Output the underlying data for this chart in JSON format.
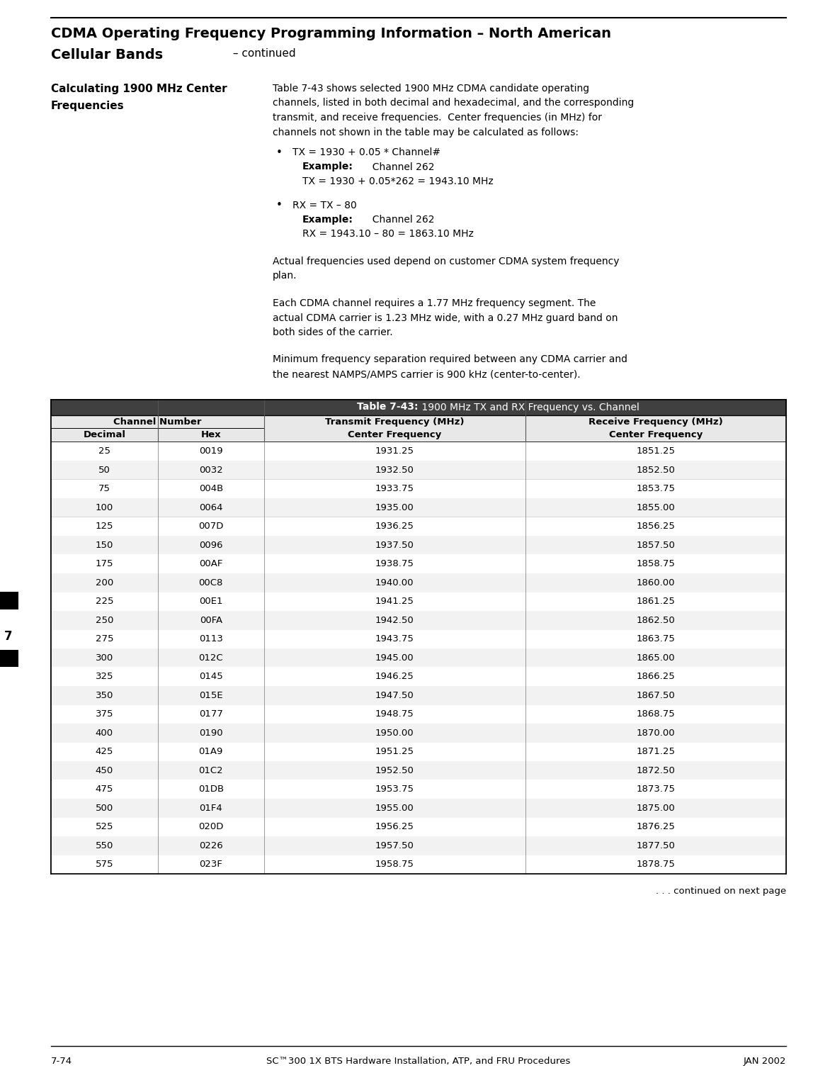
{
  "page_bg": "#ffffff",
  "title_line1": "CDMA Operating Frequency Programming Information – North American",
  "title_line2_bold": "Cellular Bands",
  "title_line2_normal": " – continued",
  "section_heading_line1": "Calculating 1900 MHz Center",
  "section_heading_line2": "Frequencies",
  "body_para0": "Table 7-43 shows selected 1900 MHz CDMA candidate operating\nchannels, listed in both decimal and hexadecimal, and the corresponding\ntransmit, and receive frequencies.  Center frequencies (in MHz) for\nchannels not shown in the table may be calculated as follows:",
  "bullet1": "TX = 1930 + 0.05 * Channel#",
  "bullet1_ex_bold": "Example:",
  "bullet1_ex_rest": "  Channel 262",
  "bullet1_calc": "TX = 1930 + 0.05*262 = 1943.10 MHz",
  "bullet2": "RX = TX – 80",
  "bullet2_ex_bold": "Example:",
  "bullet2_ex_rest": "  Channel 262",
  "bullet2_calc": "RX = 1943.10 – 80 = 1863.10 MHz",
  "para1_line1": "Actual frequencies used depend on customer CDMA system frequency",
  "para1_line2": "plan.",
  "para2_line1": "Each CDMA channel requires a 1.77 MHz frequency segment. The",
  "para2_line2": "actual CDMA carrier is 1.23 MHz wide, with a 0.27 MHz guard band on",
  "para2_line3": "both sides of the carrier.",
  "para3_line1": "Minimum frequency separation required between any CDMA carrier and",
  "para3_line2": "the nearest NAMPS/AMPS carrier is 900 kHz (center-to-center).",
  "table_title_bold": "Table 7-43:",
  "table_title_rest": " 1900 MHz TX and RX Frequency vs. Channel",
  "col_header_ch": "Channel Number",
  "col_header_dec": "Decimal",
  "col_header_hex": "Hex",
  "col_header_tx1": "Transmit Frequency (MHz)",
  "col_header_tx2": "Center Frequency",
  "col_header_rx1": "Receive Frequency (MHz)",
  "col_header_rx2": "Center Frequency",
  "table_data": [
    [
      "25",
      "0019",
      "1931.25",
      "1851.25"
    ],
    [
      "50",
      "0032",
      "1932.50",
      "1852.50"
    ],
    [
      "75",
      "004B",
      "1933.75",
      "1853.75"
    ],
    [
      "100",
      "0064",
      "1935.00",
      "1855.00"
    ],
    [
      "125",
      "007D",
      "1936.25",
      "1856.25"
    ],
    [
      "150",
      "0096",
      "1937.50",
      "1857.50"
    ],
    [
      "175",
      "00AF",
      "1938.75",
      "1858.75"
    ],
    [
      "200",
      "00C8",
      "1940.00",
      "1860.00"
    ],
    [
      "225",
      "00E1",
      "1941.25",
      "1861.25"
    ],
    [
      "250",
      "00FA",
      "1942.50",
      "1862.50"
    ],
    [
      "275",
      "0113",
      "1943.75",
      "1863.75"
    ],
    [
      "300",
      "012C",
      "1945.00",
      "1865.00"
    ],
    [
      "325",
      "0145",
      "1946.25",
      "1866.25"
    ],
    [
      "350",
      "015E",
      "1947.50",
      "1867.50"
    ],
    [
      "375",
      "0177",
      "1948.75",
      "1868.75"
    ],
    [
      "400",
      "0190",
      "1950.00",
      "1870.00"
    ],
    [
      "425",
      "01A9",
      "1951.25",
      "1871.25"
    ],
    [
      "450",
      "01C2",
      "1952.50",
      "1872.50"
    ],
    [
      "475",
      "01DB",
      "1953.75",
      "1873.75"
    ],
    [
      "500",
      "01F4",
      "1955.00",
      "1875.00"
    ],
    [
      "525",
      "020D",
      "1956.25",
      "1876.25"
    ],
    [
      "550",
      "0226",
      "1957.50",
      "1877.50"
    ],
    [
      "575",
      "023F",
      "1958.75",
      "1878.75"
    ]
  ],
  "continued_text": ". . . continued on next page",
  "footer_left": "7-74",
  "footer_center": "SC™300 1X BTS Hardware Installation, ATP, and FRU Procedures",
  "footer_right": "JAN 2002",
  "side_tab_text": "7"
}
